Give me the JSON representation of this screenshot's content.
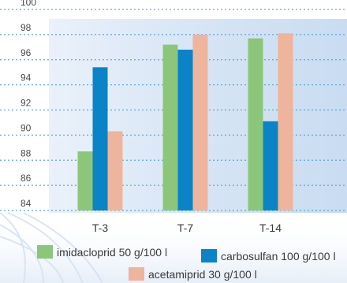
{
  "chart_data": {
    "type": "bar",
    "categories": [
      "T-3",
      "T-7",
      "T-14"
    ],
    "series": [
      {
        "name": "imidacloprid 50 g/100 l",
        "values": [
          88.7,
          97.2,
          97.7
        ],
        "color": "#8cc67a"
      },
      {
        "name": "carbosulfan 100 g/100 l",
        "values": [
          95.4,
          96.8,
          91.1
        ],
        "color": "#0a84c6"
      },
      {
        "name": "acetamiprid 30 g/100 l",
        "values": [
          90.3,
          98.0,
          98.1
        ],
        "color": "#efb49c"
      }
    ],
    "ylim": [
      84,
      100
    ],
    "yticks": [
      84,
      86,
      88,
      90,
      92,
      94,
      96,
      98,
      100
    ],
    "grid": true,
    "legend_position": "bottom"
  }
}
